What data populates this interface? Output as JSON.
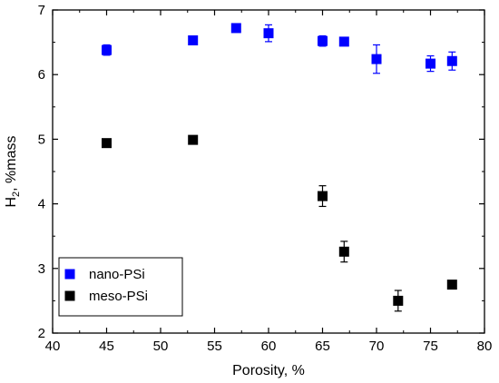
{
  "chart_data": {
    "type": "scatter",
    "xlabel": "Porosity, %",
    "ylabel": {
      "main": "H",
      "sub": "2",
      "rest": ", %mass"
    },
    "xlim": [
      40,
      80
    ],
    "ylim": [
      2,
      7
    ],
    "x_ticks": [
      40,
      45,
      50,
      55,
      60,
      65,
      70,
      75,
      80
    ],
    "y_ticks": [
      2,
      3,
      4,
      5,
      6,
      7
    ],
    "grid": false,
    "legend_position": "bottom-left",
    "series": [
      {
        "name": "nano-PSi",
        "color": "#0000ff",
        "marker": "square",
        "points": [
          {
            "x": 45,
            "y": 6.38,
            "err": 0.08
          },
          {
            "x": 53,
            "y": 6.53,
            "err": 0.03
          },
          {
            "x": 57,
            "y": 6.72,
            "err": 0.03
          },
          {
            "x": 60,
            "y": 6.64,
            "err": 0.13
          },
          {
            "x": 65,
            "y": 6.52,
            "err": 0.08
          },
          {
            "x": 67,
            "y": 6.51,
            "err": 0.03
          },
          {
            "x": 70,
            "y": 6.24,
            "err": 0.22
          },
          {
            "x": 75,
            "y": 6.17,
            "err": 0.12
          },
          {
            "x": 77,
            "y": 6.21,
            "err": 0.14
          }
        ]
      },
      {
        "name": "meso-PSi",
        "color": "#000000",
        "marker": "square",
        "points": [
          {
            "x": 45,
            "y": 4.94,
            "err": 0.0
          },
          {
            "x": 53,
            "y": 4.99,
            "err": 0.0
          },
          {
            "x": 65,
            "y": 4.12,
            "err": 0.16
          },
          {
            "x": 67,
            "y": 3.26,
            "err": 0.16
          },
          {
            "x": 72,
            "y": 2.5,
            "err": 0.16
          },
          {
            "x": 77,
            "y": 2.75,
            "err": 0.0
          }
        ]
      }
    ]
  }
}
